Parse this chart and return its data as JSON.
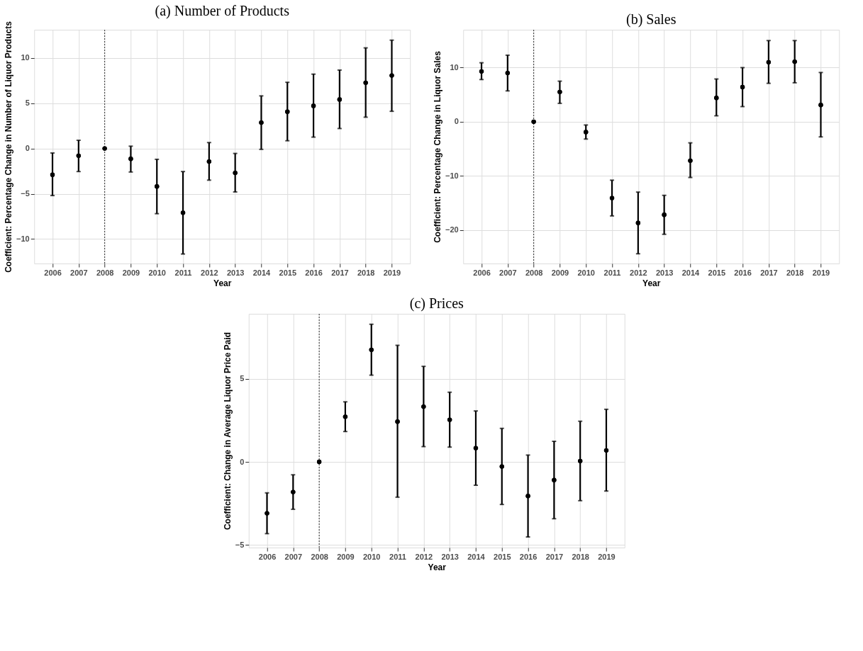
{
  "chart_data": [
    {
      "type": "scatter",
      "title": "(a) Number of Products",
      "xlabel": "Year",
      "ylabel": "Coefficient: Percentage Change in Number of Liquor Products",
      "x": [
        2006,
        2007,
        2008,
        2009,
        2010,
        2011,
        2012,
        2013,
        2014,
        2015,
        2016,
        2017,
        2018,
        2019
      ],
      "values": [
        -2.9,
        -0.8,
        0,
        -1.15,
        -4.2,
        -7.1,
        -1.45,
        -2.7,
        2.85,
        4.05,
        4.7,
        5.4,
        7.25,
        8.05
      ],
      "errors": [
        [
          -5.2,
          -0.5
        ],
        [
          -2.55,
          0.9
        ],
        null,
        [
          -2.6,
          0.25
        ],
        [
          -7.2,
          -1.2
        ],
        [
          -11.65,
          -2.55
        ],
        [
          -3.5,
          0.65
        ],
        [
          -4.8,
          -0.55
        ],
        [
          -0.1,
          5.8
        ],
        [
          0.85,
          7.3
        ],
        [
          1.25,
          8.2
        ],
        [
          2.2,
          8.65
        ],
        [
          3.45,
          11.1
        ],
        [
          4.1,
          11.95
        ]
      ],
      "color": "#000000",
      "marker": "circle",
      "xlim": [
        2005.3,
        2019.7
      ],
      "xticks": [
        2006,
        2007,
        2008,
        2009,
        2010,
        2011,
        2012,
        2013,
        2014,
        2015,
        2016,
        2017,
        2018,
        2019
      ],
      "ylim": [
        -12.7,
        13.1
      ],
      "yticks": [
        -10,
        -5,
        0,
        5,
        10
      ],
      "grid": true,
      "ref_lines": [
        {
          "axis": "x",
          "value": 2008,
          "line_style": "dotted",
          "color": "#000000"
        }
      ]
    },
    {
      "type": "scatter",
      "title": "(b) Sales",
      "xlabel": "Year",
      "ylabel": "Coefficient:  Percentage Change in Liquor Sales",
      "x": [
        2006,
        2007,
        2008,
        2009,
        2010,
        2011,
        2012,
        2013,
        2014,
        2015,
        2016,
        2017,
        2018,
        2019
      ],
      "values": [
        9.3,
        9.0,
        0,
        5.5,
        -1.9,
        -14.1,
        -18.7,
        -17.2,
        -7.2,
        4.4,
        6.4,
        11.0,
        11.1,
        3.1
      ],
      "errors": [
        [
          7.8,
          10.9
        ],
        [
          5.7,
          12.3
        ],
        null,
        [
          3.4,
          7.5
        ],
        [
          -3.2,
          -0.6
        ],
        [
          -17.4,
          -10.8
        ],
        [
          -24.4,
          -13.0
        ],
        [
          -20.8,
          -13.6
        ],
        [
          -10.3,
          -3.9
        ],
        [
          1.1,
          7.9
        ],
        [
          2.8,
          10.0
        ],
        [
          7.1,
          15.0
        ],
        [
          7.2,
          15.0
        ],
        [
          -2.8,
          9.1
        ]
      ],
      "color": "#000000",
      "marker": "circle",
      "xlim": [
        2005.3,
        2019.7
      ],
      "xticks": [
        2006,
        2007,
        2008,
        2009,
        2010,
        2011,
        2012,
        2013,
        2014,
        2015,
        2016,
        2017,
        2018,
        2019
      ],
      "ylim": [
        -26.2,
        17.0
      ],
      "yticks": [
        -20,
        -10,
        0,
        10
      ],
      "grid": true,
      "ref_lines": [
        {
          "axis": "x",
          "value": 2008,
          "line_style": "dotted",
          "color": "#000000"
        }
      ]
    },
    {
      "type": "scatter",
      "title": "(c) Prices",
      "xlabel": "Year",
      "ylabel": "Coefficient: Change in Average Liquor Price Paid",
      "x": [
        2006,
        2007,
        2008,
        2009,
        2010,
        2011,
        2012,
        2013,
        2014,
        2015,
        2016,
        2017,
        2018,
        2019
      ],
      "values": [
        -3.1,
        -1.82,
        0,
        2.72,
        6.76,
        2.43,
        3.33,
        2.54,
        0.83,
        -0.28,
        -2.06,
        -1.1,
        0.05,
        0.69
      ],
      "errors": [
        [
          -4.33,
          -1.87
        ],
        [
          -2.86,
          -0.78
        ],
        null,
        [
          1.83,
          3.62
        ],
        [
          5.23,
          8.3
        ],
        [
          -2.13,
          7.03
        ],
        [
          0.92,
          5.76
        ],
        [
          0.89,
          4.2
        ],
        [
          -1.41,
          3.07
        ],
        [
          -2.57,
          2.02
        ],
        [
          -4.53,
          0.41
        ],
        [
          -3.43,
          1.24
        ],
        [
          -2.34,
          2.45
        ],
        [
          -1.76,
          3.17
        ]
      ],
      "color": "#000000",
      "marker": "circle",
      "xlim": [
        2005.3,
        2019.7
      ],
      "xticks": [
        2006,
        2007,
        2008,
        2009,
        2010,
        2011,
        2012,
        2013,
        2014,
        2015,
        2016,
        2017,
        2018,
        2019
      ],
      "ylim": [
        -5.17,
        8.93
      ],
      "yticks": [
        -5,
        0,
        5
      ],
      "grid": true,
      "ref_lines": [
        {
          "axis": "x",
          "value": 2008,
          "line_style": "dotted",
          "color": "#000000"
        }
      ]
    }
  ]
}
